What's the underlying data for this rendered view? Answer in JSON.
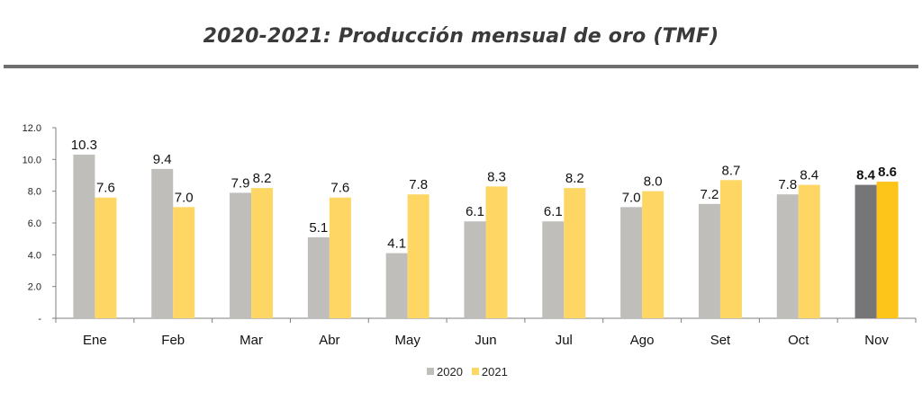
{
  "chart_data": {
    "type": "bar",
    "title": "2020-2021: Producción mensual de oro (TMF)",
    "categories": [
      "Ene",
      "Feb",
      "Mar",
      "Abr",
      "May",
      "Jun",
      "Jul",
      "Ago",
      "Set",
      "Oct",
      "Nov"
    ],
    "series": [
      {
        "name": "2020",
        "values": [
          10.3,
          9.4,
          7.9,
          5.1,
          4.1,
          6.1,
          6.1,
          7.0,
          7.2,
          7.8,
          8.4
        ]
      },
      {
        "name": "2021",
        "values": [
          7.6,
          7.0,
          8.2,
          7.6,
          7.8,
          8.3,
          8.2,
          8.0,
          8.7,
          8.4,
          8.6
        ]
      }
    ],
    "value_labels": [
      [
        "10.3",
        "9.4",
        "7.9",
        "5.1",
        "4.1",
        "6.1",
        "6.1",
        "7.0",
        "7.2",
        "7.8",
        "8.4"
      ],
      [
        "7.6",
        "7.0",
        "8.2",
        "7.6",
        "7.8",
        "8.3",
        "8.2",
        "8.0",
        "8.7",
        "8.4",
        "8.6"
      ]
    ],
    "ylim": [
      0,
      12
    ],
    "yticks": [
      0,
      2,
      4,
      6,
      8,
      10,
      12
    ],
    "ytick_labels": [
      "-",
      "2.0",
      "4.0",
      "6.0",
      "8.0",
      "10.0",
      "12.0"
    ],
    "highlight_category": "Nov",
    "colors": {
      "2020": "#c0bebb",
      "2021": "#fdd663",
      "2020_highlight": "#767577",
      "2021_highlight": "#fdc419",
      "axis": "#7f7f7f"
    },
    "legend_position": "bottom-center",
    "grid": false,
    "xlabel": "",
    "ylabel": ""
  }
}
